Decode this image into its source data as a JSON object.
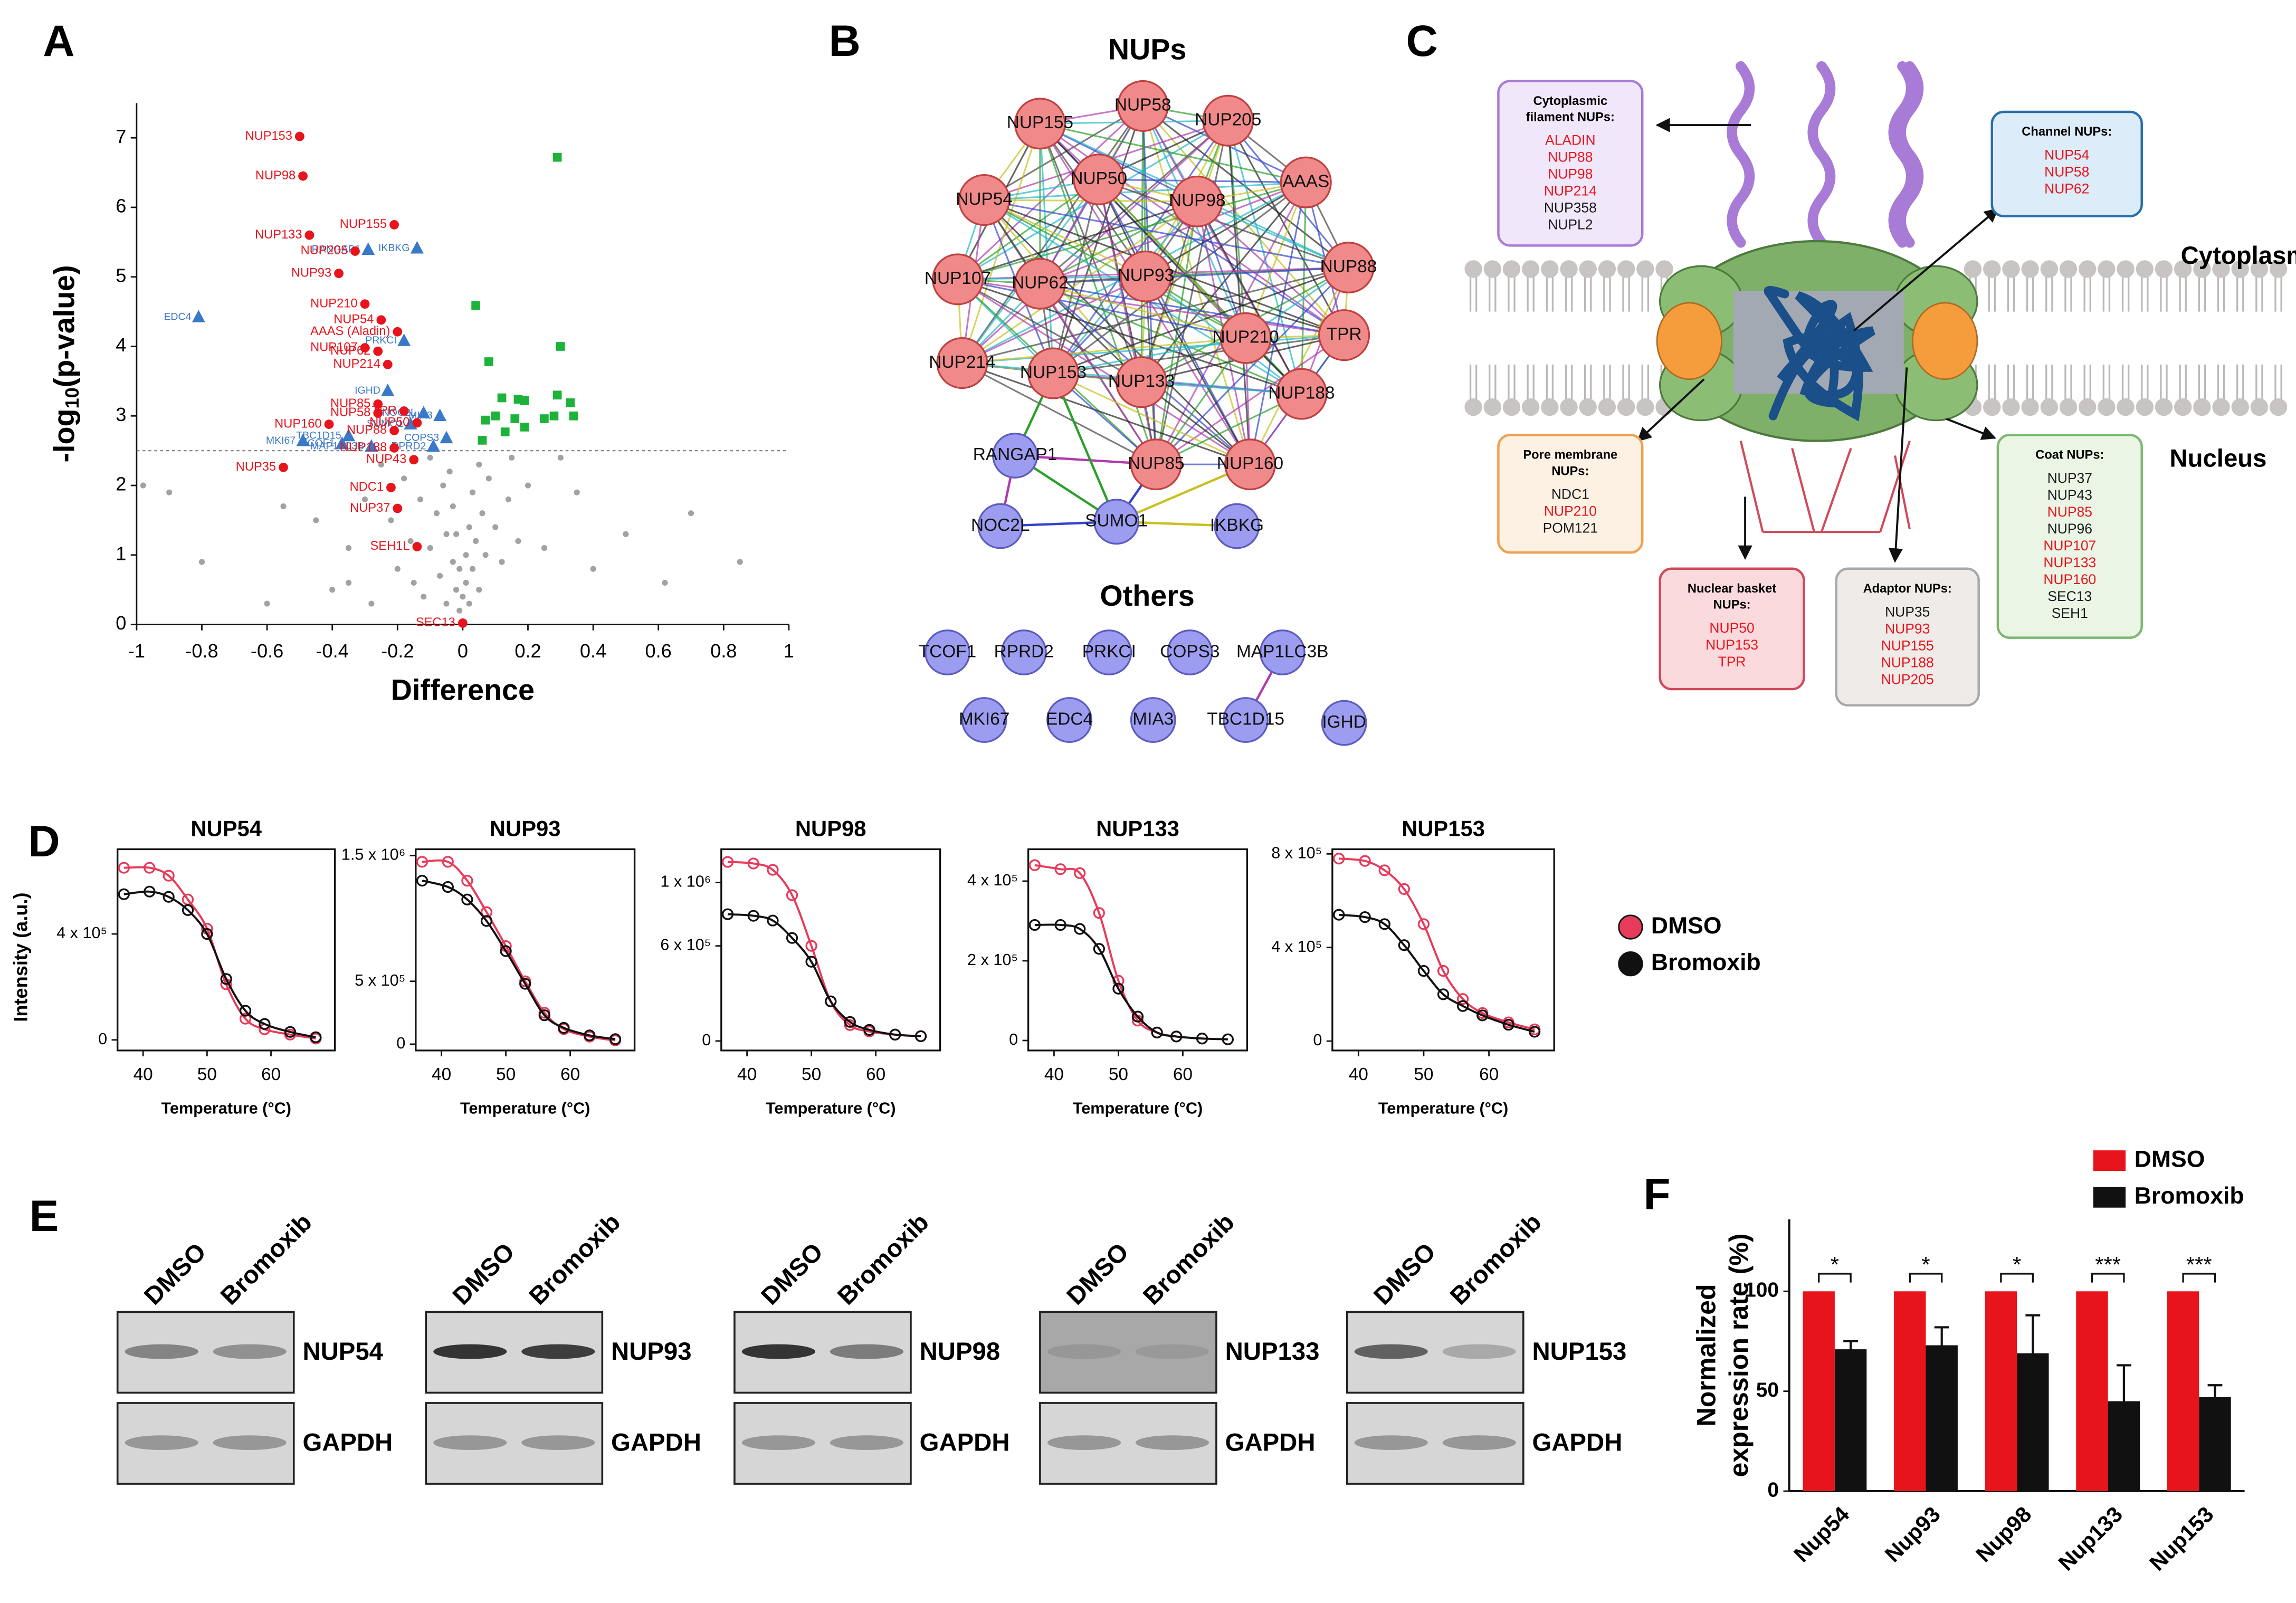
{
  "panel_labels": [
    "A",
    "B",
    "C",
    "D",
    "E",
    "F"
  ],
  "chart_data": [
    {
      "type": "scatter",
      "xlabel": "Difference",
      "ylabel": [
        "-log",
        "10",
        "(p-value)"
      ],
      "xlim": [
        -1,
        1
      ],
      "xticks": [
        -1,
        -0.8,
        -0.6,
        -0.4,
        -0.2,
        0,
        0.2,
        0.4,
        0.6,
        0.8,
        1
      ],
      "ylim": [
        0,
        7.5
      ],
      "yticks": [
        0,
        1,
        2,
        3,
        4,
        5,
        6,
        7
      ],
      "threshold": 2.5,
      "series": [
        {
          "color": "#555555",
          "marker": "dot",
          "x": [
            -0.9,
            -0.8,
            -0.55,
            -0.45,
            -0.4,
            -0.35,
            -0.3,
            -0.28,
            -0.25,
            -0.22,
            -0.2,
            -0.18,
            -0.16,
            -0.15,
            -0.13,
            -0.12,
            -0.1,
            -0.1,
            -0.08,
            -0.07,
            -0.06,
            -0.05,
            -0.05,
            -0.04,
            -0.03,
            -0.03,
            -0.02,
            -0.02,
            -0.01,
            -0.01,
            0,
            0.01,
            0.01,
            0.02,
            0.02,
            0.03,
            0.03,
            0.04,
            0.05,
            0.05,
            0.06,
            0.07,
            0.08,
            0.1,
            0.12,
            0.14,
            0.17,
            0.2,
            0.25,
            0.3,
            0.4,
            0.5,
            0.62,
            0.85,
            -0.98,
            -0.6,
            -0.35,
            0.15,
            0.35,
            0.7
          ],
          "values": [
            1.9,
            0.9,
            1.7,
            1.5,
            0.5,
            1.1,
            1.8,
            0.3,
            2.3,
            1.5,
            0.8,
            2.1,
            1.2,
            0.6,
            1.8,
            0.4,
            2.4,
            1.1,
            1.6,
            0.7,
            2.0,
            1.3,
            0.3,
            2.2,
            0.9,
            1.7,
            0.5,
            1.3,
            0.2,
            0.8,
            0.4,
            0.6,
            1.0,
            1.4,
            0.3,
            1.9,
            0.8,
            1.2,
            2.3,
            0.5,
            1.6,
            1.0,
            2.1,
            1.4,
            0.9,
            1.8,
            1.2,
            2.0,
            1.1,
            2.4,
            0.8,
            1.3,
            0.6,
            0.9,
            2.0,
            0.3,
            0.6,
            2.4,
            1.9,
            1.6
          ]
        },
        {
          "color": "#1db33a",
          "marker": "square",
          "x": [
            0.29,
            0.04,
            0.3,
            0.08,
            0.12,
            0.17,
            0.19,
            0.29,
            0.33,
            0.34,
            0.25,
            0.16,
            0.1,
            0.07,
            0.13,
            0.06,
            0.19,
            0.28
          ],
          "values": [
            6.72,
            4.59,
            4.0,
            3.78,
            3.26,
            3.24,
            3.22,
            3.3,
            3.19,
            3.0,
            2.96,
            2.96,
            3.0,
            2.94,
            2.77,
            2.65,
            2.84,
            3.0
          ]
        },
        {
          "color": "#3a78c8",
          "marker": "triangle",
          "x": [
            -0.81,
            -0.29,
            -0.14,
            -0.18,
            -0.23,
            -0.12,
            -0.07,
            -0.35,
            -0.49,
            -0.37,
            -0.16,
            -0.28,
            -0.05,
            -0.09
          ],
          "values": [
            4.42,
            5.39,
            5.41,
            4.08,
            3.36,
            3.04,
            3.0,
            2.71,
            2.64,
            2.6,
            2.88,
            2.56,
            2.68,
            2.56
          ],
          "labels": [
            "EDC4",
            "RANGAP1",
            "IKBKG",
            "PRKCI",
            "IGHD",
            "NOC2L",
            "MIA3",
            "TBC1D15",
            "MKI67",
            "TCOF1",
            "SUMO1",
            "MAP1LC3B",
            "COPS3",
            "RPRD2"
          ]
        },
        {
          "color": "#e8141b",
          "marker": "circle",
          "x": [
            -0.5,
            -0.49,
            -0.21,
            -0.47,
            -0.33,
            -0.38,
            -0.3,
            -0.25,
            -0.2,
            -0.3,
            -0.26,
            -0.23,
            -0.18,
            -0.26,
            -0.26,
            -0.41,
            -0.21,
            -0.14,
            -0.21,
            -0.55,
            -0.15,
            -0.22,
            -0.2,
            -0.14,
            0.0
          ],
          "values": [
            7.02,
            6.45,
            5.75,
            5.6,
            5.37,
            5.05,
            4.61,
            4.38,
            4.21,
            3.98,
            3.93,
            3.74,
            3.07,
            3.17,
            3.04,
            2.88,
            2.79,
            2.9,
            2.54,
            2.26,
            2.37,
            1.97,
            1.67,
            1.12,
            0.02
          ],
          "labels": [
            "NUP153",
            "NUP98",
            "NUP155",
            "NUP133",
            "NUP205",
            "NUP93",
            "NUP210",
            "NUP54",
            "AAAS (Aladin)",
            "NUP107",
            "NUP62",
            "NUP214",
            "TPR",
            "NUP85",
            "NUP58",
            "NUP160",
            "NUP88",
            "NUP50",
            "NUP188",
            "NUP35",
            "NUP43",
            "NDC1",
            "NUP37",
            "SEH1L",
            "SEC13"
          ]
        }
      ]
    },
    {
      "type": "line",
      "title": "NUP54",
      "xlabel": "Temperature (°C)",
      "ylabel": "Intensity (a.u.)",
      "xlim": [
        36,
        70
      ],
      "xticks": [
        40,
        50,
        60
      ],
      "ylim": [
        -40000,
        720000
      ],
      "yticks": [
        0,
        {
          "value": 400000,
          "label": "4 x 10⁵"
        }
      ],
      "x": [
        37,
        41,
        44,
        47,
        50,
        53,
        56,
        59,
        63,
        67
      ],
      "series": [
        {
          "name": "DMSO",
          "color": "#e83a5a",
          "values": [
            650000,
            650000,
            620000,
            530000,
            420000,
            210000,
            80000,
            40000,
            20000,
            5000
          ]
        },
        {
          "name": "Bromoxib",
          "color": "#111111",
          "values": [
            550000,
            560000,
            540000,
            490000,
            400000,
            230000,
            110000,
            60000,
            30000,
            10000
          ]
        }
      ]
    },
    {
      "type": "line",
      "title": "NUP93",
      "xlabel": "Temperature (°C)",
      "xlim": [
        36,
        70
      ],
      "xticks": [
        40,
        50,
        60
      ],
      "ylim": [
        -50000,
        1550000
      ],
      "yticks": [
        0,
        {
          "value": 500000,
          "label": "5 x 10⁵"
        },
        {
          "value": 1500000,
          "label": "1.5 x 10⁶"
        }
      ],
      "x": [
        37,
        41,
        44,
        47,
        50,
        53,
        56,
        59,
        63,
        67
      ],
      "series": [
        {
          "name": "DMSO",
          "color": "#e83a5a",
          "values": [
            1450000,
            1450000,
            1300000,
            1050000,
            780000,
            500000,
            250000,
            120000,
            60000,
            30000
          ]
        },
        {
          "name": "Bromoxib",
          "color": "#111111",
          "values": [
            1300000,
            1250000,
            1150000,
            980000,
            740000,
            480000,
            230000,
            130000,
            70000,
            40000
          ]
        }
      ]
    },
    {
      "type": "line",
      "title": "NUP98",
      "xlabel": "Temperature (°C)",
      "xlim": [
        36,
        70
      ],
      "xticks": [
        40,
        50,
        60
      ],
      "ylim": [
        -60000,
        1210000
      ],
      "yticks": [
        0,
        {
          "value": 600000,
          "label": "6 x 10⁵"
        },
        {
          "value": 1000000,
          "label": "1 x 10⁶"
        }
      ],
      "x": [
        37,
        41,
        44,
        47,
        50,
        53,
        56,
        59,
        63,
        67
      ],
      "series": [
        {
          "name": "DMSO",
          "color": "#e83a5a",
          "values": [
            1130000,
            1120000,
            1080000,
            920000,
            600000,
            250000,
            100000,
            60000,
            40000,
            30000
          ]
        },
        {
          "name": "Bromoxib",
          "color": "#111111",
          "values": [
            800000,
            790000,
            760000,
            650000,
            500000,
            250000,
            120000,
            70000,
            40000,
            30000
          ]
        }
      ]
    },
    {
      "type": "line",
      "title": "NUP133",
      "xlabel": "Temperature (°C)",
      "xlim": [
        36,
        70
      ],
      "xticks": [
        40,
        50,
        60
      ],
      "ylim": [
        -25000,
        480000
      ],
      "yticks": [
        0,
        {
          "value": 200000,
          "label": "2 x 10⁵"
        },
        {
          "value": 400000,
          "label": "4 x 10⁵"
        }
      ],
      "x": [
        37,
        41,
        44,
        47,
        50,
        53,
        56,
        59,
        63,
        67
      ],
      "series": [
        {
          "name": "DMSO",
          "color": "#e83a5a",
          "values": [
            440000,
            430000,
            420000,
            320000,
            150000,
            50000,
            20000,
            10000,
            5000,
            3000
          ]
        },
        {
          "name": "Bromoxib",
          "color": "#111111",
          "values": [
            290000,
            290000,
            280000,
            230000,
            130000,
            60000,
            20000,
            10000,
            5000,
            3000
          ]
        }
      ]
    },
    {
      "type": "line",
      "title": "NUP153",
      "xlabel": "Temperature (°C)",
      "xlim": [
        36,
        70
      ],
      "xticks": [
        40,
        50,
        60
      ],
      "ylim": [
        -40000,
        820000
      ],
      "yticks": [
        0,
        {
          "value": 400000,
          "label": "4 x 10⁵"
        },
        {
          "value": 800000,
          "label": "8 x 10⁵"
        }
      ],
      "x": [
        37,
        41,
        44,
        47,
        50,
        53,
        56,
        59,
        63,
        67
      ],
      "series": [
        {
          "name": "DMSO",
          "color": "#e83a5a",
          "values": [
            780000,
            770000,
            730000,
            650000,
            500000,
            300000,
            180000,
            120000,
            80000,
            50000
          ]
        },
        {
          "name": "Bromoxib",
          "color": "#111111",
          "values": [
            540000,
            530000,
            500000,
            410000,
            300000,
            200000,
            150000,
            110000,
            70000,
            40000
          ]
        }
      ]
    },
    {
      "type": "bar",
      "ylabel": [
        "Normalized",
        "expression rate (%)"
      ],
      "categories": [
        "Nup54",
        "Nup93",
        "Nup98",
        "Nup133",
        "Nup153"
      ],
      "ylim": [
        0,
        136
      ],
      "yticks": [
        0,
        50,
        100
      ],
      "series": [
        {
          "name": "DMSO",
          "color": "#e8141b",
          "values": [
            100,
            100,
            100,
            100,
            100
          ]
        },
        {
          "name": "Bromoxib",
          "color": "#111111",
          "values": [
            71,
            73,
            69,
            45,
            47
          ],
          "errors": [
            4,
            9,
            19,
            18,
            6
          ]
        }
      ],
      "significance": [
        "*",
        "*",
        "*",
        "***",
        "***"
      ]
    }
  ],
  "network": {
    "title": "NUPs",
    "others_title": "Others",
    "nodes": [
      {
        "label": "NUP58",
        "color": "#f08a8a"
      },
      {
        "label": "NUP205",
        "color": "#f08a8a"
      },
      {
        "label": "NUP155",
        "color": "#f08a8a"
      },
      {
        "label": "AAAS",
        "color": "#f08a8a"
      },
      {
        "label": "NUP50",
        "color": "#f08a8a"
      },
      {
        "label": "NUP98",
        "color": "#f08a8a"
      },
      {
        "label": "NUP54",
        "color": "#f08a8a"
      },
      {
        "label": "NUP88",
        "color": "#f08a8a"
      },
      {
        "label": "NUP93",
        "color": "#f08a8a"
      },
      {
        "label": "NUP107",
        "color": "#f08a8a"
      },
      {
        "label": "NUP62",
        "color": "#f08a8a"
      },
      {
        "label": "TPR",
        "color": "#f08a8a"
      },
      {
        "label": "NUP210",
        "color": "#f08a8a"
      },
      {
        "label": "NUP214",
        "color": "#f08a8a"
      },
      {
        "label": "NUP153",
        "color": "#f08a8a"
      },
      {
        "label": "NUP133",
        "color": "#f08a8a"
      },
      {
        "label": "NUP188",
        "color": "#f08a8a"
      },
      {
        "label": "NUP85",
        "color": "#f08a8a"
      },
      {
        "label": "NUP160",
        "color": "#f08a8a"
      },
      {
        "label": "RANGAP1",
        "color": "#9c9cf0"
      },
      {
        "label": "SUMO1",
        "color": "#9c9cf0"
      },
      {
        "label": "NOC2L",
        "color": "#9c9cf0"
      },
      {
        "label": "IKBKG",
        "color": "#9c9cf0"
      },
      {
        "label": "TCOF1",
        "color": "#9c9cf0"
      },
      {
        "label": "RPRD2",
        "color": "#9c9cf0"
      },
      {
        "label": "PRKCI",
        "color": "#9c9cf0"
      },
      {
        "label": "COPS3",
        "color": "#9c9cf0"
      },
      {
        "label": "MAP1LC3B",
        "color": "#9c9cf0"
      },
      {
        "label": "MKI67",
        "color": "#9c9cf0"
      },
      {
        "label": "EDC4",
        "color": "#9c9cf0"
      },
      {
        "label": "MIA3",
        "color": "#9c9cf0"
      },
      {
        "label": "TBC1D15",
        "color": "#9c9cf0"
      },
      {
        "label": "IGHD",
        "color": "#9c9cf0"
      }
    ]
  },
  "diagram": {
    "labels": [
      "Cytoplasm",
      "Nucleus"
    ],
    "boxes": [
      {
        "title": [
          "Cytoplasmic",
          "filament NUPs:"
        ],
        "items": [
          {
            "text": "ALADIN",
            "color": "#e8141b"
          },
          {
            "text": "NUP88",
            "color": "#e8141b"
          },
          {
            "text": "NUP98",
            "color": "#e8141b"
          },
          {
            "text": "NUP214",
            "color": "#e8141b"
          },
          {
            "text": "NUP358",
            "color": "#1a1a1a"
          },
          {
            "text": "NUPL2",
            "color": "#1a1a1a"
          }
        ]
      },
      {
        "title": [
          "Channel NUPs:"
        ],
        "items": [
          {
            "text": "NUP54",
            "color": "#e8141b"
          },
          {
            "text": "NUP58",
            "color": "#e8141b"
          },
          {
            "text": "NUP62",
            "color": "#e8141b"
          }
        ]
      },
      {
        "title": [
          "Pore membrane",
          "NUPs:"
        ],
        "items": [
          {
            "text": "NDC1",
            "color": "#1a1a1a"
          },
          {
            "text": "NUP210",
            "color": "#e8141b"
          },
          {
            "text": "POM121",
            "color": "#1a1a1a"
          }
        ]
      },
      {
        "title": [
          "Coat NUPs:"
        ],
        "items": [
          {
            "text": "NUP37",
            "color": "#1a1a1a"
          },
          {
            "text": "NUP43",
            "color": "#1a1a1a"
          },
          {
            "text": "NUP85",
            "color": "#e8141b"
          },
          {
            "text": "NUP96",
            "color": "#1a1a1a"
          },
          {
            "text": "NUP107",
            "color": "#e8141b"
          },
          {
            "text": "NUP133",
            "color": "#e8141b"
          },
          {
            "text": "NUP160",
            "color": "#e8141b"
          },
          {
            "text": "SEC13",
            "color": "#1a1a1a"
          },
          {
            "text": "SEH1",
            "color": "#1a1a1a"
          }
        ]
      },
      {
        "title": [
          "Nuclear basket",
          "NUPs:"
        ],
        "items": [
          {
            "text": "NUP50",
            "color": "#e8141b"
          },
          {
            "text": "NUP153",
            "color": "#e8141b"
          },
          {
            "text": "TPR",
            "color": "#e8141b"
          }
        ]
      },
      {
        "title": [
          "Adaptor NUPs:"
        ],
        "items": [
          {
            "text": "NUP35",
            "color": "#1a1a1a"
          },
          {
            "text": "NUP93",
            "color": "#e8141b"
          },
          {
            "text": "NUP155",
            "color": "#e8141b"
          },
          {
            "text": "NUP188",
            "color": "#e8141b"
          },
          {
            "text": "NUP205",
            "color": "#e8141b"
          }
        ]
      }
    ]
  },
  "blots": {
    "columns": [
      "DMSO",
      "Bromoxib"
    ],
    "targets": [
      "NUP54",
      "NUP93",
      "NUP98",
      "NUP133",
      "NUP153"
    ],
    "loading_control": "GAPDH"
  }
}
